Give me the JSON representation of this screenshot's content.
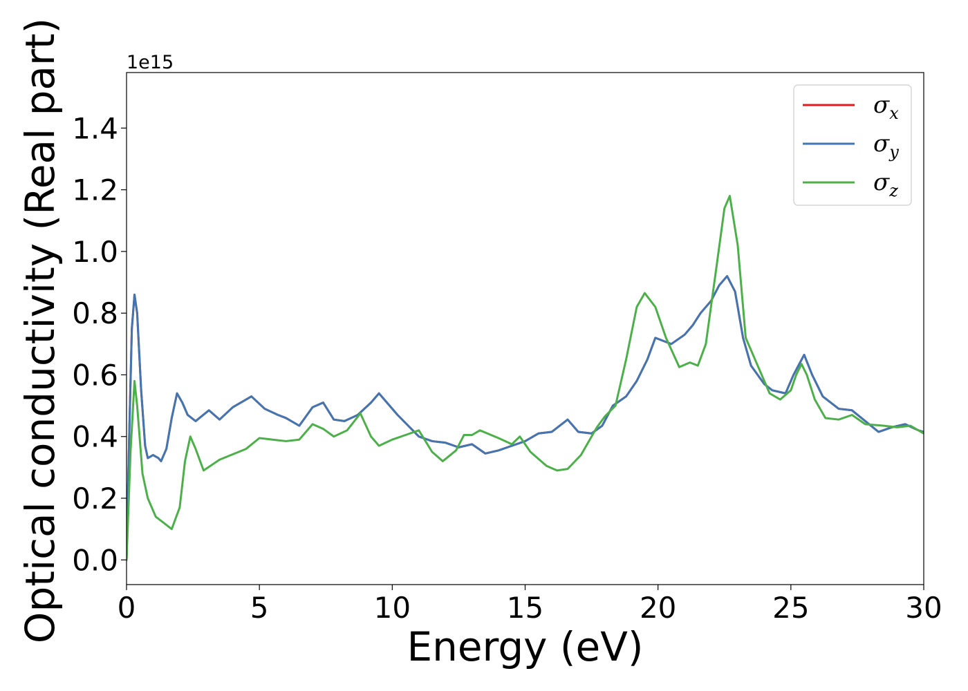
{
  "chart_data": {
    "type": "line",
    "xlabel": "Energy (eV)",
    "ylabel": "Optical conductivity (Real part)",
    "y_offset_text": "1e15",
    "xlim": [
      0,
      30
    ],
    "ylim": [
      -0.08,
      1.58
    ],
    "y_scale": 1000000000000000.0,
    "x_ticks": [
      0,
      5,
      10,
      15,
      20,
      25,
      30
    ],
    "x_tick_labels": [
      "0",
      "5",
      "10",
      "15",
      "20",
      "25",
      "30"
    ],
    "y_ticks": [
      0.0,
      0.2,
      0.4,
      0.6,
      0.8,
      1.0,
      1.2,
      1.4
    ],
    "y_tick_labels": [
      "0.0",
      "0.2",
      "0.4",
      "0.6",
      "0.8",
      "1.0",
      "1.2",
      "1.4"
    ],
    "grid": false,
    "legend_position": "top-right",
    "series": [
      {
        "name": "σx",
        "legend_base": "σ",
        "legend_sub": "x",
        "color": "#e41a1c",
        "points": [
          [
            0,
            0
          ],
          [
            0.1,
            0.4
          ],
          [
            0.2,
            0.75
          ],
          [
            0.3,
            0.86
          ],
          [
            0.4,
            0.8
          ],
          [
            0.55,
            0.55
          ],
          [
            0.7,
            0.37
          ],
          [
            0.8,
            0.33
          ],
          [
            1.0,
            0.34
          ],
          [
            1.2,
            0.33
          ],
          [
            1.3,
            0.32
          ],
          [
            1.5,
            0.36
          ],
          [
            1.7,
            0.46
          ],
          [
            1.9,
            0.54
          ],
          [
            2.1,
            0.51
          ],
          [
            2.3,
            0.47
          ],
          [
            2.6,
            0.45
          ],
          [
            3.1,
            0.485
          ],
          [
            3.5,
            0.455
          ],
          [
            4.0,
            0.495
          ],
          [
            4.7,
            0.53
          ],
          [
            5.2,
            0.49
          ],
          [
            5.7,
            0.47
          ],
          [
            6.0,
            0.46
          ],
          [
            6.5,
            0.435
          ],
          [
            7.0,
            0.495
          ],
          [
            7.4,
            0.51
          ],
          [
            7.8,
            0.455
          ],
          [
            8.2,
            0.45
          ],
          [
            8.7,
            0.47
          ],
          [
            9.2,
            0.51
          ],
          [
            9.5,
            0.54
          ],
          [
            9.8,
            0.51
          ],
          [
            10.2,
            0.47
          ],
          [
            11.0,
            0.4
          ],
          [
            11.5,
            0.385
          ],
          [
            12.0,
            0.38
          ],
          [
            12.5,
            0.365
          ],
          [
            13.0,
            0.375
          ],
          [
            13.5,
            0.345
          ],
          [
            14.0,
            0.355
          ],
          [
            14.5,
            0.37
          ],
          [
            15.0,
            0.385
          ],
          [
            15.5,
            0.41
          ],
          [
            16.0,
            0.415
          ],
          [
            16.6,
            0.455
          ],
          [
            17.0,
            0.415
          ],
          [
            17.5,
            0.41
          ],
          [
            17.9,
            0.435
          ],
          [
            18.3,
            0.5
          ],
          [
            18.8,
            0.53
          ],
          [
            19.2,
            0.58
          ],
          [
            19.6,
            0.65
          ],
          [
            19.9,
            0.72
          ],
          [
            20.2,
            0.71
          ],
          [
            20.5,
            0.7
          ],
          [
            21.0,
            0.73
          ],
          [
            21.3,
            0.76
          ],
          [
            21.6,
            0.8
          ],
          [
            22.0,
            0.84
          ],
          [
            22.3,
            0.89
          ],
          [
            22.6,
            0.92
          ],
          [
            22.9,
            0.87
          ],
          [
            23.2,
            0.72
          ],
          [
            23.5,
            0.63
          ],
          [
            24.0,
            0.57
          ],
          [
            24.3,
            0.55
          ],
          [
            24.8,
            0.54
          ],
          [
            25.1,
            0.6
          ],
          [
            25.5,
            0.665
          ],
          [
            25.8,
            0.6
          ],
          [
            26.2,
            0.53
          ],
          [
            26.8,
            0.49
          ],
          [
            27.3,
            0.485
          ],
          [
            27.8,
            0.45
          ],
          [
            28.3,
            0.415
          ],
          [
            28.8,
            0.43
          ],
          [
            29.3,
            0.44
          ],
          [
            29.8,
            0.42
          ],
          [
            30.0,
            0.415
          ]
        ]
      },
      {
        "name": "σy",
        "legend_base": "σ",
        "legend_sub": "y",
        "color": "#4176b0",
        "points": [
          [
            0,
            0
          ],
          [
            0.1,
            0.4
          ],
          [
            0.2,
            0.75
          ],
          [
            0.3,
            0.86
          ],
          [
            0.4,
            0.8
          ],
          [
            0.55,
            0.55
          ],
          [
            0.7,
            0.37
          ],
          [
            0.8,
            0.33
          ],
          [
            1.0,
            0.34
          ],
          [
            1.2,
            0.33
          ],
          [
            1.3,
            0.32
          ],
          [
            1.5,
            0.36
          ],
          [
            1.7,
            0.46
          ],
          [
            1.9,
            0.54
          ],
          [
            2.1,
            0.51
          ],
          [
            2.3,
            0.47
          ],
          [
            2.6,
            0.45
          ],
          [
            3.1,
            0.485
          ],
          [
            3.5,
            0.455
          ],
          [
            4.0,
            0.495
          ],
          [
            4.7,
            0.53
          ],
          [
            5.2,
            0.49
          ],
          [
            5.7,
            0.47
          ],
          [
            6.0,
            0.46
          ],
          [
            6.5,
            0.435
          ],
          [
            7.0,
            0.495
          ],
          [
            7.4,
            0.51
          ],
          [
            7.8,
            0.455
          ],
          [
            8.2,
            0.45
          ],
          [
            8.7,
            0.47
          ],
          [
            9.2,
            0.51
          ],
          [
            9.5,
            0.54
          ],
          [
            9.8,
            0.51
          ],
          [
            10.2,
            0.47
          ],
          [
            11.0,
            0.4
          ],
          [
            11.5,
            0.385
          ],
          [
            12.0,
            0.38
          ],
          [
            12.5,
            0.365
          ],
          [
            13.0,
            0.375
          ],
          [
            13.5,
            0.345
          ],
          [
            14.0,
            0.355
          ],
          [
            14.5,
            0.37
          ],
          [
            15.0,
            0.385
          ],
          [
            15.5,
            0.41
          ],
          [
            16.0,
            0.415
          ],
          [
            16.6,
            0.455
          ],
          [
            17.0,
            0.415
          ],
          [
            17.5,
            0.41
          ],
          [
            17.9,
            0.435
          ],
          [
            18.3,
            0.5
          ],
          [
            18.8,
            0.53
          ],
          [
            19.2,
            0.58
          ],
          [
            19.6,
            0.65
          ],
          [
            19.9,
            0.72
          ],
          [
            20.2,
            0.71
          ],
          [
            20.5,
            0.7
          ],
          [
            21.0,
            0.73
          ],
          [
            21.3,
            0.76
          ],
          [
            21.6,
            0.8
          ],
          [
            22.0,
            0.84
          ],
          [
            22.3,
            0.89
          ],
          [
            22.6,
            0.92
          ],
          [
            22.9,
            0.87
          ],
          [
            23.2,
            0.72
          ],
          [
            23.5,
            0.63
          ],
          [
            24.0,
            0.57
          ],
          [
            24.3,
            0.55
          ],
          [
            24.8,
            0.54
          ],
          [
            25.1,
            0.6
          ],
          [
            25.5,
            0.665
          ],
          [
            25.8,
            0.6
          ],
          [
            26.2,
            0.53
          ],
          [
            26.8,
            0.49
          ],
          [
            27.3,
            0.485
          ],
          [
            27.8,
            0.45
          ],
          [
            28.3,
            0.415
          ],
          [
            28.8,
            0.43
          ],
          [
            29.3,
            0.44
          ],
          [
            29.8,
            0.42
          ],
          [
            30.0,
            0.415
          ]
        ]
      },
      {
        "name": "σz",
        "legend_base": "σ",
        "legend_sub": "z",
        "color": "#4daf4a",
        "points": [
          [
            0,
            0
          ],
          [
            0.15,
            0.35
          ],
          [
            0.3,
            0.58
          ],
          [
            0.4,
            0.5
          ],
          [
            0.6,
            0.28
          ],
          [
            0.8,
            0.2
          ],
          [
            1.1,
            0.14
          ],
          [
            1.4,
            0.12
          ],
          [
            1.7,
            0.1
          ],
          [
            2.0,
            0.17
          ],
          [
            2.2,
            0.32
          ],
          [
            2.4,
            0.4
          ],
          [
            2.6,
            0.36
          ],
          [
            2.9,
            0.29
          ],
          [
            3.5,
            0.325
          ],
          [
            4.5,
            0.36
          ],
          [
            5.0,
            0.395
          ],
          [
            5.5,
            0.39
          ],
          [
            6.0,
            0.385
          ],
          [
            6.5,
            0.39
          ],
          [
            7.0,
            0.44
          ],
          [
            7.4,
            0.425
          ],
          [
            7.8,
            0.4
          ],
          [
            8.3,
            0.42
          ],
          [
            8.8,
            0.475
          ],
          [
            9.2,
            0.4
          ],
          [
            9.5,
            0.37
          ],
          [
            10.0,
            0.39
          ],
          [
            10.5,
            0.405
          ],
          [
            11.0,
            0.42
          ],
          [
            11.5,
            0.35
          ],
          [
            11.9,
            0.32
          ],
          [
            12.4,
            0.355
          ],
          [
            12.7,
            0.405
          ],
          [
            13.0,
            0.405
          ],
          [
            13.3,
            0.42
          ],
          [
            14.0,
            0.395
          ],
          [
            14.5,
            0.375
          ],
          [
            14.8,
            0.4
          ],
          [
            15.2,
            0.35
          ],
          [
            15.8,
            0.305
          ],
          [
            16.2,
            0.29
          ],
          [
            16.6,
            0.295
          ],
          [
            17.1,
            0.34
          ],
          [
            17.7,
            0.43
          ],
          [
            18.0,
            0.465
          ],
          [
            18.4,
            0.5
          ],
          [
            18.8,
            0.65
          ],
          [
            19.2,
            0.82
          ],
          [
            19.5,
            0.865
          ],
          [
            19.9,
            0.82
          ],
          [
            20.3,
            0.72
          ],
          [
            20.8,
            0.625
          ],
          [
            21.2,
            0.64
          ],
          [
            21.5,
            0.63
          ],
          [
            21.8,
            0.7
          ],
          [
            22.2,
            0.95
          ],
          [
            22.5,
            1.14
          ],
          [
            22.7,
            1.18
          ],
          [
            23.0,
            1.02
          ],
          [
            23.3,
            0.72
          ],
          [
            23.8,
            0.62
          ],
          [
            24.2,
            0.54
          ],
          [
            24.6,
            0.52
          ],
          [
            25.0,
            0.55
          ],
          [
            25.2,
            0.6
          ],
          [
            25.4,
            0.635
          ],
          [
            25.6,
            0.6
          ],
          [
            25.9,
            0.52
          ],
          [
            26.3,
            0.46
          ],
          [
            26.8,
            0.455
          ],
          [
            27.3,
            0.47
          ],
          [
            27.8,
            0.44
          ],
          [
            28.5,
            0.435
          ],
          [
            29.0,
            0.43
          ],
          [
            29.5,
            0.435
          ],
          [
            30.0,
            0.41
          ]
        ]
      }
    ]
  }
}
